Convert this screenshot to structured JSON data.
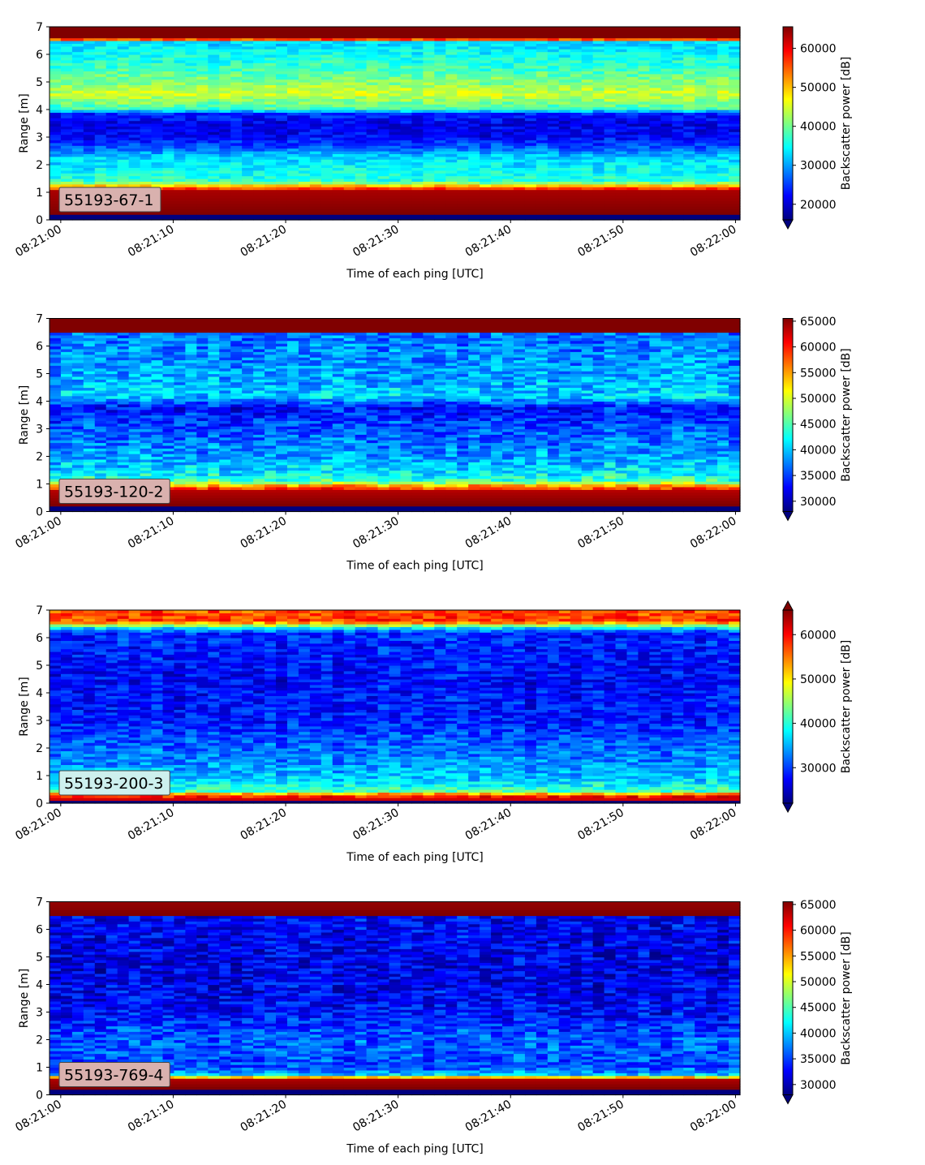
{
  "chart_data": [
    {
      "type": "heatmap",
      "label": "55193-67-1",
      "label_bg": "#d9b1ae",
      "xlabel": "Time of each ping [UTC]",
      "ylabel": "Range [m]",
      "x_ticks": [
        "08:21:00",
        "08:21:10",
        "08:21:20",
        "08:21:30",
        "08:21:40",
        "08:21:50",
        "08:22:00"
      ],
      "x_range_s": [
        -1,
        60.4
      ],
      "ylim": [
        0,
        7
      ],
      "y_ticks": [
        0,
        1,
        2,
        3,
        4,
        5,
        6,
        7
      ],
      "colorbar": {
        "label": "Backscatter power [dB]",
        "vmin": 16000,
        "vmax": 65535,
        "ticks": [
          20000,
          30000,
          40000,
          50000,
          60000
        ],
        "extend_min": true,
        "extend_max": false
      },
      "profile": [
        {
          "r": 0.0,
          "v": 0.0
        },
        {
          "r": 0.2,
          "v": 0.0
        },
        {
          "r": 0.25,
          "v": 1.0
        },
        {
          "r": 1.05,
          "v": 0.96
        },
        {
          "r": 1.22,
          "v": 0.72
        },
        {
          "r": 1.4,
          "v": 0.42
        },
        {
          "r": 1.8,
          "v": 0.38
        },
        {
          "r": 2.3,
          "v": 0.33
        },
        {
          "r": 2.6,
          "v": 0.22
        },
        {
          "r": 3.0,
          "v": 0.12
        },
        {
          "r": 3.5,
          "v": 0.1
        },
        {
          "r": 3.85,
          "v": 0.16
        },
        {
          "r": 4.05,
          "v": 0.44
        },
        {
          "r": 4.6,
          "v": 0.58
        },
        {
          "r": 5.0,
          "v": 0.5
        },
        {
          "r": 5.6,
          "v": 0.42
        },
        {
          "r": 6.2,
          "v": 0.36
        },
        {
          "r": 6.45,
          "v": 0.34
        },
        {
          "r": 6.52,
          "v": 0.66
        },
        {
          "r": 6.6,
          "v": 1.0
        },
        {
          "r": 7.0,
          "v": 1.0
        }
      ],
      "noise": 0.06
    },
    {
      "type": "heatmap",
      "label": "55193-120-2",
      "label_bg": "#d9b1ae",
      "xlabel": "Time of each ping [UTC]",
      "ylabel": "Range [m]",
      "x_ticks": [
        "08:21:00",
        "08:21:10",
        "08:21:20",
        "08:21:30",
        "08:21:40",
        "08:21:50",
        "08:22:00"
      ],
      "x_range_s": [
        -1,
        60.4
      ],
      "ylim": [
        0,
        7
      ],
      "y_ticks": [
        0,
        1,
        2,
        3,
        4,
        5,
        6,
        7
      ],
      "colorbar": {
        "label": "Backscatter power [dB]",
        "vmin": 28000,
        "vmax": 65535,
        "ticks": [
          30000,
          35000,
          40000,
          45000,
          50000,
          55000,
          60000,
          65000
        ],
        "extend_min": true,
        "extend_max": false
      },
      "profile": [
        {
          "r": 0.0,
          "v": 0.0
        },
        {
          "r": 0.2,
          "v": 0.0
        },
        {
          "r": 0.25,
          "v": 1.0
        },
        {
          "r": 0.75,
          "v": 0.95
        },
        {
          "r": 0.95,
          "v": 0.7
        },
        {
          "r": 1.1,
          "v": 0.45
        },
        {
          "r": 1.4,
          "v": 0.36
        },
        {
          "r": 2.0,
          "v": 0.28
        },
        {
          "r": 3.0,
          "v": 0.2
        },
        {
          "r": 3.8,
          "v": 0.14
        },
        {
          "r": 4.2,
          "v": 0.34
        },
        {
          "r": 4.6,
          "v": 0.3
        },
        {
          "r": 5.6,
          "v": 0.26
        },
        {
          "r": 6.45,
          "v": 0.24
        },
        {
          "r": 6.5,
          "v": 1.0
        },
        {
          "r": 7.0,
          "v": 1.0
        }
      ],
      "noise": 0.09
    },
    {
      "type": "heatmap",
      "label": "55193-200-3",
      "label_bg": "#cdf0ee",
      "xlabel": "Time of each ping [UTC]",
      "ylabel": "Range [m]",
      "x_ticks": [
        "08:21:00",
        "08:21:10",
        "08:21:20",
        "08:21:30",
        "08:21:40",
        "08:21:50",
        "08:22:00"
      ],
      "x_range_s": [
        -1,
        60.4
      ],
      "ylim": [
        0,
        7
      ],
      "y_ticks": [
        0,
        1,
        2,
        3,
        4,
        5,
        6,
        7
      ],
      "colorbar": {
        "label": "Backscatter power [dB]",
        "vmin": 22000,
        "vmax": 65535,
        "ticks": [
          30000,
          40000,
          50000,
          60000
        ],
        "extend_min": true,
        "extend_max": true
      },
      "profile": [
        {
          "r": 0.0,
          "v": 0.0
        },
        {
          "r": 0.05,
          "v": 0.0
        },
        {
          "r": 0.1,
          "v": 0.95
        },
        {
          "r": 0.3,
          "v": 0.82
        },
        {
          "r": 0.45,
          "v": 0.45
        },
        {
          "r": 0.8,
          "v": 0.34
        },
        {
          "r": 1.5,
          "v": 0.26
        },
        {
          "r": 2.2,
          "v": 0.22
        },
        {
          "r": 3.0,
          "v": 0.15
        },
        {
          "r": 4.5,
          "v": 0.13
        },
        {
          "r": 6.2,
          "v": 0.16
        },
        {
          "r": 6.4,
          "v": 0.42
        },
        {
          "r": 6.6,
          "v": 0.82
        },
        {
          "r": 7.0,
          "v": 0.8
        }
      ],
      "noise": 0.08
    },
    {
      "type": "heatmap",
      "label": "55193-769-4",
      "label_bg": "#d9b1ae",
      "xlabel": "Time of each ping [UTC]",
      "ylabel": "Range [m]",
      "x_ticks": [
        "08:21:00",
        "08:21:10",
        "08:21:20",
        "08:21:30",
        "08:21:40",
        "08:21:50",
        "08:22:00"
      ],
      "x_range_s": [
        -1,
        60.4
      ],
      "ylim": [
        0,
        7
      ],
      "y_ticks": [
        0,
        1,
        2,
        3,
        4,
        5,
        6,
        7
      ],
      "colorbar": {
        "label": "Backscatter power [dB]",
        "vmin": 28000,
        "vmax": 65535,
        "ticks": [
          30000,
          35000,
          40000,
          45000,
          50000,
          55000,
          60000,
          65000
        ],
        "extend_min": true,
        "extend_max": false
      },
      "profile": [
        {
          "r": 0.0,
          "v": 0.0
        },
        {
          "r": 0.2,
          "v": 0.0
        },
        {
          "r": 0.25,
          "v": 1.0
        },
        {
          "r": 0.6,
          "v": 0.95
        },
        {
          "r": 0.7,
          "v": 0.35
        },
        {
          "r": 1.0,
          "v": 0.2
        },
        {
          "r": 2.0,
          "v": 0.22
        },
        {
          "r": 3.0,
          "v": 0.13
        },
        {
          "r": 4.5,
          "v": 0.1
        },
        {
          "r": 6.45,
          "v": 0.12
        },
        {
          "r": 6.5,
          "v": 0.75
        },
        {
          "r": 6.55,
          "v": 1.0
        },
        {
          "r": 7.0,
          "v": 0.98
        }
      ],
      "noise": 0.09
    }
  ]
}
